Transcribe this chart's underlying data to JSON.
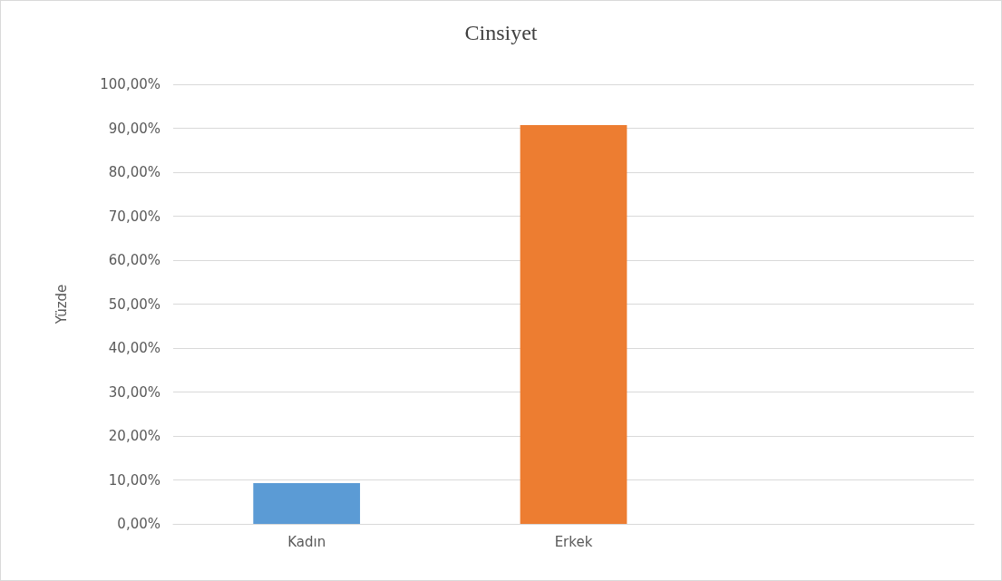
{
  "chart_data": {
    "type": "bar",
    "title": "Cinsiyet",
    "ylabel": "Yüzde",
    "categories": [
      "Kadın",
      "Erkek",
      null
    ],
    "values": [
      9.3,
      90.7,
      null
    ],
    "colors": [
      "#5b9bd5",
      "#ed7d31",
      null
    ],
    "ylim": [
      0,
      100
    ],
    "yticks": [
      {
        "value": 0,
        "label": "0,00%"
      },
      {
        "value": 10,
        "label": "10,00%"
      },
      {
        "value": 20,
        "label": "20,00%"
      },
      {
        "value": 30,
        "label": "30,00%"
      },
      {
        "value": 40,
        "label": "40,00%"
      },
      {
        "value": 50,
        "label": "50,00%"
      },
      {
        "value": 60,
        "label": "60,00%"
      },
      {
        "value": 70,
        "label": "70,00%"
      },
      {
        "value": 80,
        "label": "80,00%"
      },
      {
        "value": 90,
        "label": "90,00%"
      },
      {
        "value": 100,
        "label": "100,00%"
      }
    ],
    "grid": "y"
  }
}
